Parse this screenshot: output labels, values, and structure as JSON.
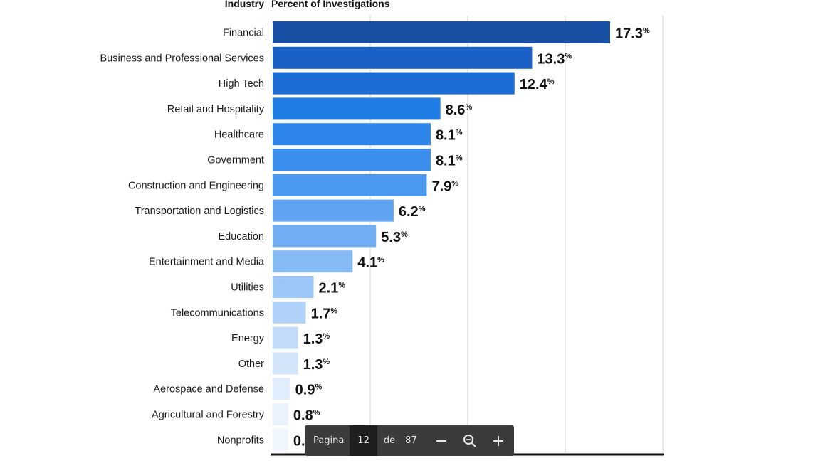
{
  "chart_data": {
    "type": "bar",
    "orientation": "horizontal",
    "category_header": "Industry",
    "value_header": "Percent of Investigations",
    "categories": [
      "Financial",
      "Business and Professional Services",
      "High Tech",
      "Retail and Hospitality",
      "Healthcare",
      "Government",
      "Construction and Engineering",
      "Transportation and Logistics",
      "Education",
      "Entertainment and Media",
      "Utilities",
      "Telecommunications",
      "Energy",
      "Other",
      "Aerospace and Defense",
      "Agricultural and Forestry",
      "Nonprofits"
    ],
    "values": [
      17.3,
      13.3,
      12.4,
      8.6,
      8.1,
      8.1,
      7.9,
      6.2,
      5.3,
      4.1,
      2.1,
      1.7,
      1.3,
      1.3,
      0.9,
      0.8,
      0.8
    ],
    "value_labels": [
      "17.3",
      "13.3",
      "12.4",
      "8.6",
      "8.1",
      "8.1",
      "7.9",
      "6.2",
      "5.3",
      "4.1",
      "2.1",
      "1.7",
      "1.3",
      "1.3",
      "0.9",
      "0.8",
      "0.8"
    ],
    "value_suffix": "%",
    "xlim": [
      0,
      20
    ],
    "grid": true,
    "bar_colors": [
      "#1a4fa6",
      "#1b60c4",
      "#1c6dd6",
      "#1f7de6",
      "#2d85ea",
      "#3b8eed",
      "#4b98f0",
      "#5fa3f2",
      "#72aef3",
      "#86baf5",
      "#9cc6f7",
      "#b0d2f8",
      "#c2dcf9",
      "#d2e5fb",
      "#e0edfc",
      "#e9f2fd",
      "#f0f6fe"
    ]
  },
  "viewer_toolbar": {
    "page_label": "Pagina",
    "page_number": "12",
    "of_label": "de",
    "total_pages": "87",
    "zoom_out_icon": "minus-icon",
    "zoom_icon": "magnifier-icon",
    "zoom_in_icon": "plus-icon"
  }
}
